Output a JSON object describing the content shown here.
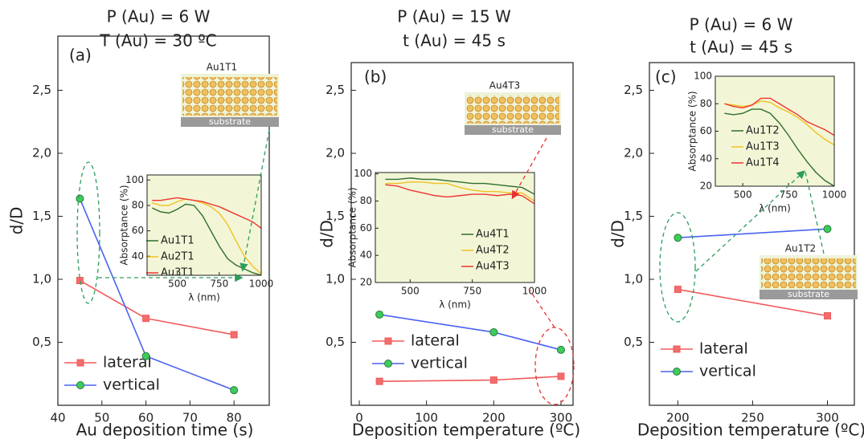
{
  "chart_data": [
    {
      "type": "line",
      "title_lines": [
        "P (Au) = 6 W",
        "T (Au) = 30 ºC"
      ],
      "panel_label": "(a)",
      "xlabel": "Au deposition time (s)",
      "ylabel": "d/D",
      "xlim": [
        40,
        88
      ],
      "xticks": [
        40,
        50,
        60,
        70,
        80
      ],
      "ylim": [
        0,
        2.93
      ],
      "yticks": [
        {
          "value": 0.5,
          "label": "0,5"
        },
        {
          "value": 1.0,
          "label": "1,0"
        },
        {
          "value": 1.5,
          "label": "1,5"
        },
        {
          "value": 2.0,
          "label": "2,0"
        },
        {
          "value": 2.5,
          "label": "2,5"
        }
      ],
      "x": [
        45,
        60,
        80
      ],
      "series": [
        {
          "name": "lateral",
          "color": "#f25a5a",
          "marker_color": "#f26d6d",
          "marker": "square",
          "values": [
            0.99,
            0.69,
            0.56
          ]
        },
        {
          "name": "vertical",
          "color": "#4a62f0",
          "marker_color": "#3dcc5c",
          "marker": "circle",
          "values": [
            1.64,
            0.39,
            0.12
          ]
        }
      ],
      "schematic": {
        "label": "Au1T1",
        "substrate": "substrate"
      },
      "inset": {
        "xlabel": "λ (nm)",
        "ylabel": "Absorptance (%)",
        "xlim": [
          320,
          1000
        ],
        "xticks": [
          500,
          750,
          1000
        ],
        "ylim": [
          25,
          104
        ],
        "yticks": [
          40,
          60,
          80,
          100
        ],
        "background": "#f3f6d6",
        "x": [
          350,
          400,
          450,
          500,
          550,
          600,
          650,
          700,
          750,
          800,
          850,
          900,
          950,
          1000
        ],
        "series": [
          {
            "name": "Au1T1",
            "color": "#2f6e2f",
            "values": [
              78,
              75,
              74,
              77,
              81,
              80,
              72,
              60,
              48,
              38,
              33,
              30,
              27,
              25
            ]
          },
          {
            "name": "Au2T1",
            "color": "#f0c020",
            "values": [
              82,
              80,
              80,
              83,
              85,
              84,
              82,
              79,
              74,
              65,
              52,
              40,
              32,
              26
            ]
          },
          {
            "name": "Au3T1",
            "color": "#ee3333",
            "values": [
              84,
              84,
              85,
              86,
              85,
              84,
              83,
              81,
              79,
              76,
              73,
              70,
              67,
              62
            ]
          }
        ]
      }
    },
    {
      "type": "line",
      "title_lines": [
        "P (Au) = 15 W",
        "t (Au) = 45 s"
      ],
      "panel_label": "(b)",
      "xlabel": "Deposition temperature (ºC)",
      "ylabel": "d/D",
      "xlim": [
        -12,
        318
      ],
      "xticks": [
        0,
        100,
        200,
        300
      ],
      "ylim": [
        0,
        2.72
      ],
      "yticks": [
        {
          "value": 0.5,
          "label": "0,5"
        },
        {
          "value": 1.0,
          "label": "1,0"
        },
        {
          "value": 1.5,
          "label": "1,5"
        },
        {
          "value": 2.0,
          "label": "2,0"
        },
        {
          "value": 2.5,
          "label": "2,5"
        }
      ],
      "x": [
        30,
        200,
        300
      ],
      "series": [
        {
          "name": "lateral",
          "color": "#f25a5a",
          "marker_color": "#f26d6d",
          "marker": "square",
          "values": [
            0.19,
            0.2,
            0.23
          ]
        },
        {
          "name": "vertical",
          "color": "#4a62f0",
          "marker_color": "#3dcc5c",
          "marker": "circle",
          "values": [
            0.72,
            0.58,
            0.44
          ]
        }
      ],
      "schematic": {
        "label": "Au4T3",
        "substrate": "substrate"
      },
      "inset": {
        "xlabel": "λ (nm)",
        "ylabel": "Absorptance (%)",
        "xlim": [
          360,
          1000
        ],
        "xticks": [
          500,
          750,
          1000
        ],
        "ylim": [
          20,
          101
        ],
        "yticks": [
          20,
          40,
          60,
          80,
          100
        ],
        "background": "#f3f6d6",
        "x": [
          400,
          450,
          500,
          550,
          600,
          650,
          700,
          750,
          800,
          850,
          900,
          950,
          1000
        ],
        "series": [
          {
            "name": "Au4T1",
            "color": "#2f6e2f",
            "values": [
              96,
              96,
              97,
              96,
              96,
              95,
              94,
              93,
              93,
              92,
              91,
              90,
              85
            ]
          },
          {
            "name": "Au4T2",
            "color": "#f0c020",
            "values": [
              93,
              93,
              94,
              94,
              93,
              93,
              90,
              88,
              87,
              87,
              86,
              86,
              80
            ]
          },
          {
            "name": "Au4T3",
            "color": "#ee3333",
            "values": [
              92,
              91,
              88,
              86,
              84,
              83,
              84,
              85,
              85,
              84,
              85,
              84,
              78
            ]
          }
        ]
      }
    },
    {
      "type": "line",
      "title_lines": [
        "P (Au) = 6 W",
        "t (Au) = 45 s"
      ],
      "panel_label": "(c)",
      "xlabel": "Deposition temperature (ºC)",
      "ylabel": "d/D",
      "xlim": [
        181,
        318
      ],
      "xticks": [
        200,
        250,
        300
      ],
      "ylim": [
        0,
        2.72
      ],
      "yticks": [
        {
          "value": 0.5,
          "label": "0,5"
        },
        {
          "value": 1.0,
          "label": "1,0"
        },
        {
          "value": 1.5,
          "label": "1,5"
        },
        {
          "value": 2.0,
          "label": "2,0"
        },
        {
          "value": 2.5,
          "label": "2,5"
        }
      ],
      "x": [
        200,
        300
      ],
      "series": [
        {
          "name": "lateral",
          "color": "#f25a5a",
          "marker_color": "#f26d6d",
          "marker": "square",
          "values": [
            0.92,
            0.71
          ]
        },
        {
          "name": "vertical",
          "color": "#4a62f0",
          "marker_color": "#3dcc5c",
          "marker": "circle",
          "values": [
            1.33,
            1.4
          ]
        }
      ],
      "schematic": {
        "label": "Au1T2",
        "substrate": "substrate"
      },
      "inset": {
        "xlabel": "λ (nm)",
        "ylabel": "Absorptance (%)",
        "xlim": [
          350,
          1000
        ],
        "xticks": [
          500,
          750,
          1000
        ],
        "ylim": [
          20,
          100
        ],
        "yticks": [
          20,
          40,
          60,
          80,
          100
        ],
        "background": "#f3f6d6",
        "x": [
          400,
          450,
          500,
          550,
          600,
          650,
          700,
          750,
          800,
          850,
          900,
          950,
          1000
        ],
        "series": [
          {
            "name": "Au1T2",
            "color": "#2f6e2f",
            "values": [
              73,
              72,
              73,
              76,
              76,
              73,
              66,
              57,
              47,
              38,
              30,
              24,
              20
            ]
          },
          {
            "name": "Au1T3",
            "color": "#f0c020",
            "values": [
              80,
              79,
              78,
              79,
              82,
              81,
              77,
              74,
              70,
              65,
              59,
              54,
              50
            ]
          },
          {
            "name": "Au1T4",
            "color": "#ee3333",
            "values": [
              80,
              78,
              77,
              79,
              84,
              84,
              80,
              76,
              72,
              67,
              64,
              61,
              57
            ]
          }
        ]
      }
    }
  ]
}
